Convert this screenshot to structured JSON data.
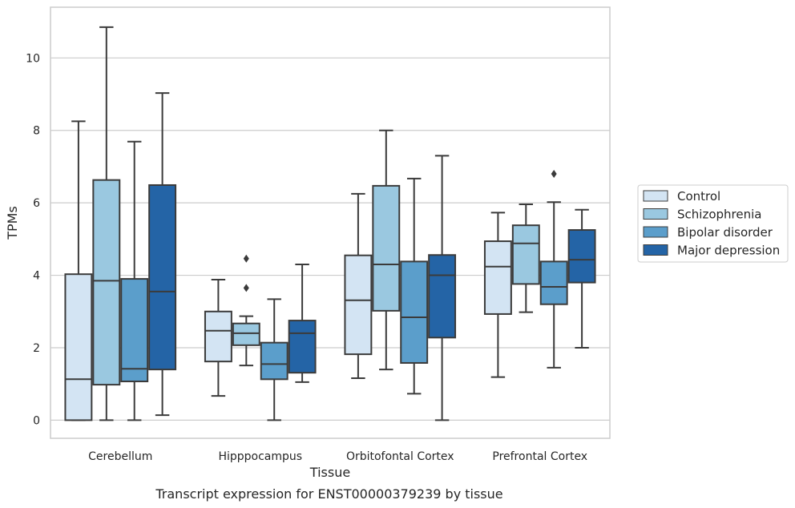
{
  "chart_data": {
    "type": "box",
    "xlabel": "Tissue",
    "ylabel": "TPMs",
    "caption": "Transcript expression for ENST00000379239 by tissue",
    "ylim": [
      -0.5,
      11.4
    ],
    "yticks": [
      0,
      2,
      4,
      6,
      8,
      10
    ],
    "grid": true,
    "legend_position": "right",
    "categories": [
      "Cerebellum",
      "Hipppocampus",
      "Orbitofontal Cortex",
      "Prefrontal Cortex"
    ],
    "series": [
      {
        "name": "Control",
        "color": "#d3e4f3",
        "boxes": [
          {
            "whislo": 0.0,
            "q1": 0.0,
            "med": 1.13,
            "q3": 4.03,
            "whishi": 8.25,
            "fliers": []
          },
          {
            "whislo": 0.67,
            "q1": 1.62,
            "med": 2.47,
            "q3": 3.0,
            "whishi": 3.88,
            "fliers": []
          },
          {
            "whislo": 1.16,
            "q1": 1.82,
            "med": 3.31,
            "q3": 4.55,
            "whishi": 6.25,
            "fliers": []
          },
          {
            "whislo": 1.19,
            "q1": 2.93,
            "med": 4.24,
            "q3": 4.94,
            "whishi": 5.73,
            "fliers": []
          }
        ]
      },
      {
        "name": "Schizophrenia",
        "color": "#9ac8e0",
        "boxes": [
          {
            "whislo": 0.0,
            "q1": 0.98,
            "med": 3.85,
            "q3": 6.63,
            "whishi": 10.85,
            "fliers": []
          },
          {
            "whislo": 1.51,
            "q1": 2.07,
            "med": 2.4,
            "q3": 2.67,
            "whishi": 2.87,
            "fliers": [
              3.65,
              4.46
            ]
          },
          {
            "whislo": 1.4,
            "q1": 3.02,
            "med": 4.3,
            "q3": 6.47,
            "whishi": 8.0,
            "fliers": []
          },
          {
            "whislo": 2.98,
            "q1": 3.76,
            "med": 4.88,
            "q3": 5.38,
            "whishi": 5.96,
            "fliers": []
          }
        ]
      },
      {
        "name": "Bipolar disorder",
        "color": "#5b9ecb",
        "boxes": [
          {
            "whislo": 0.0,
            "q1": 1.07,
            "med": 1.42,
            "q3": 3.9,
            "whishi": 7.69,
            "fliers": []
          },
          {
            "whislo": 0.0,
            "q1": 1.13,
            "med": 1.55,
            "q3": 2.14,
            "whishi": 3.34,
            "fliers": []
          },
          {
            "whislo": 0.73,
            "q1": 1.58,
            "med": 2.84,
            "q3": 4.38,
            "whishi": 6.67,
            "fliers": []
          },
          {
            "whislo": 1.45,
            "q1": 3.2,
            "med": 3.68,
            "q3": 4.38,
            "whishi": 6.02,
            "fliers": [
              6.8
            ]
          }
        ]
      },
      {
        "name": "Major depression",
        "color": "#2464a6",
        "boxes": [
          {
            "whislo": 0.14,
            "q1": 1.4,
            "med": 3.55,
            "q3": 6.49,
            "whishi": 9.03,
            "fliers": []
          },
          {
            "whislo": 1.05,
            "q1": 1.31,
            "med": 2.4,
            "q3": 2.75,
            "whishi": 4.3,
            "fliers": []
          },
          {
            "whislo": 0.0,
            "q1": 2.28,
            "med": 4.0,
            "q3": 4.56,
            "whishi": 7.3,
            "fliers": []
          },
          {
            "whislo": 2.0,
            "q1": 3.8,
            "med": 4.43,
            "q3": 5.25,
            "whishi": 5.81,
            "fliers": []
          }
        ]
      }
    ]
  }
}
